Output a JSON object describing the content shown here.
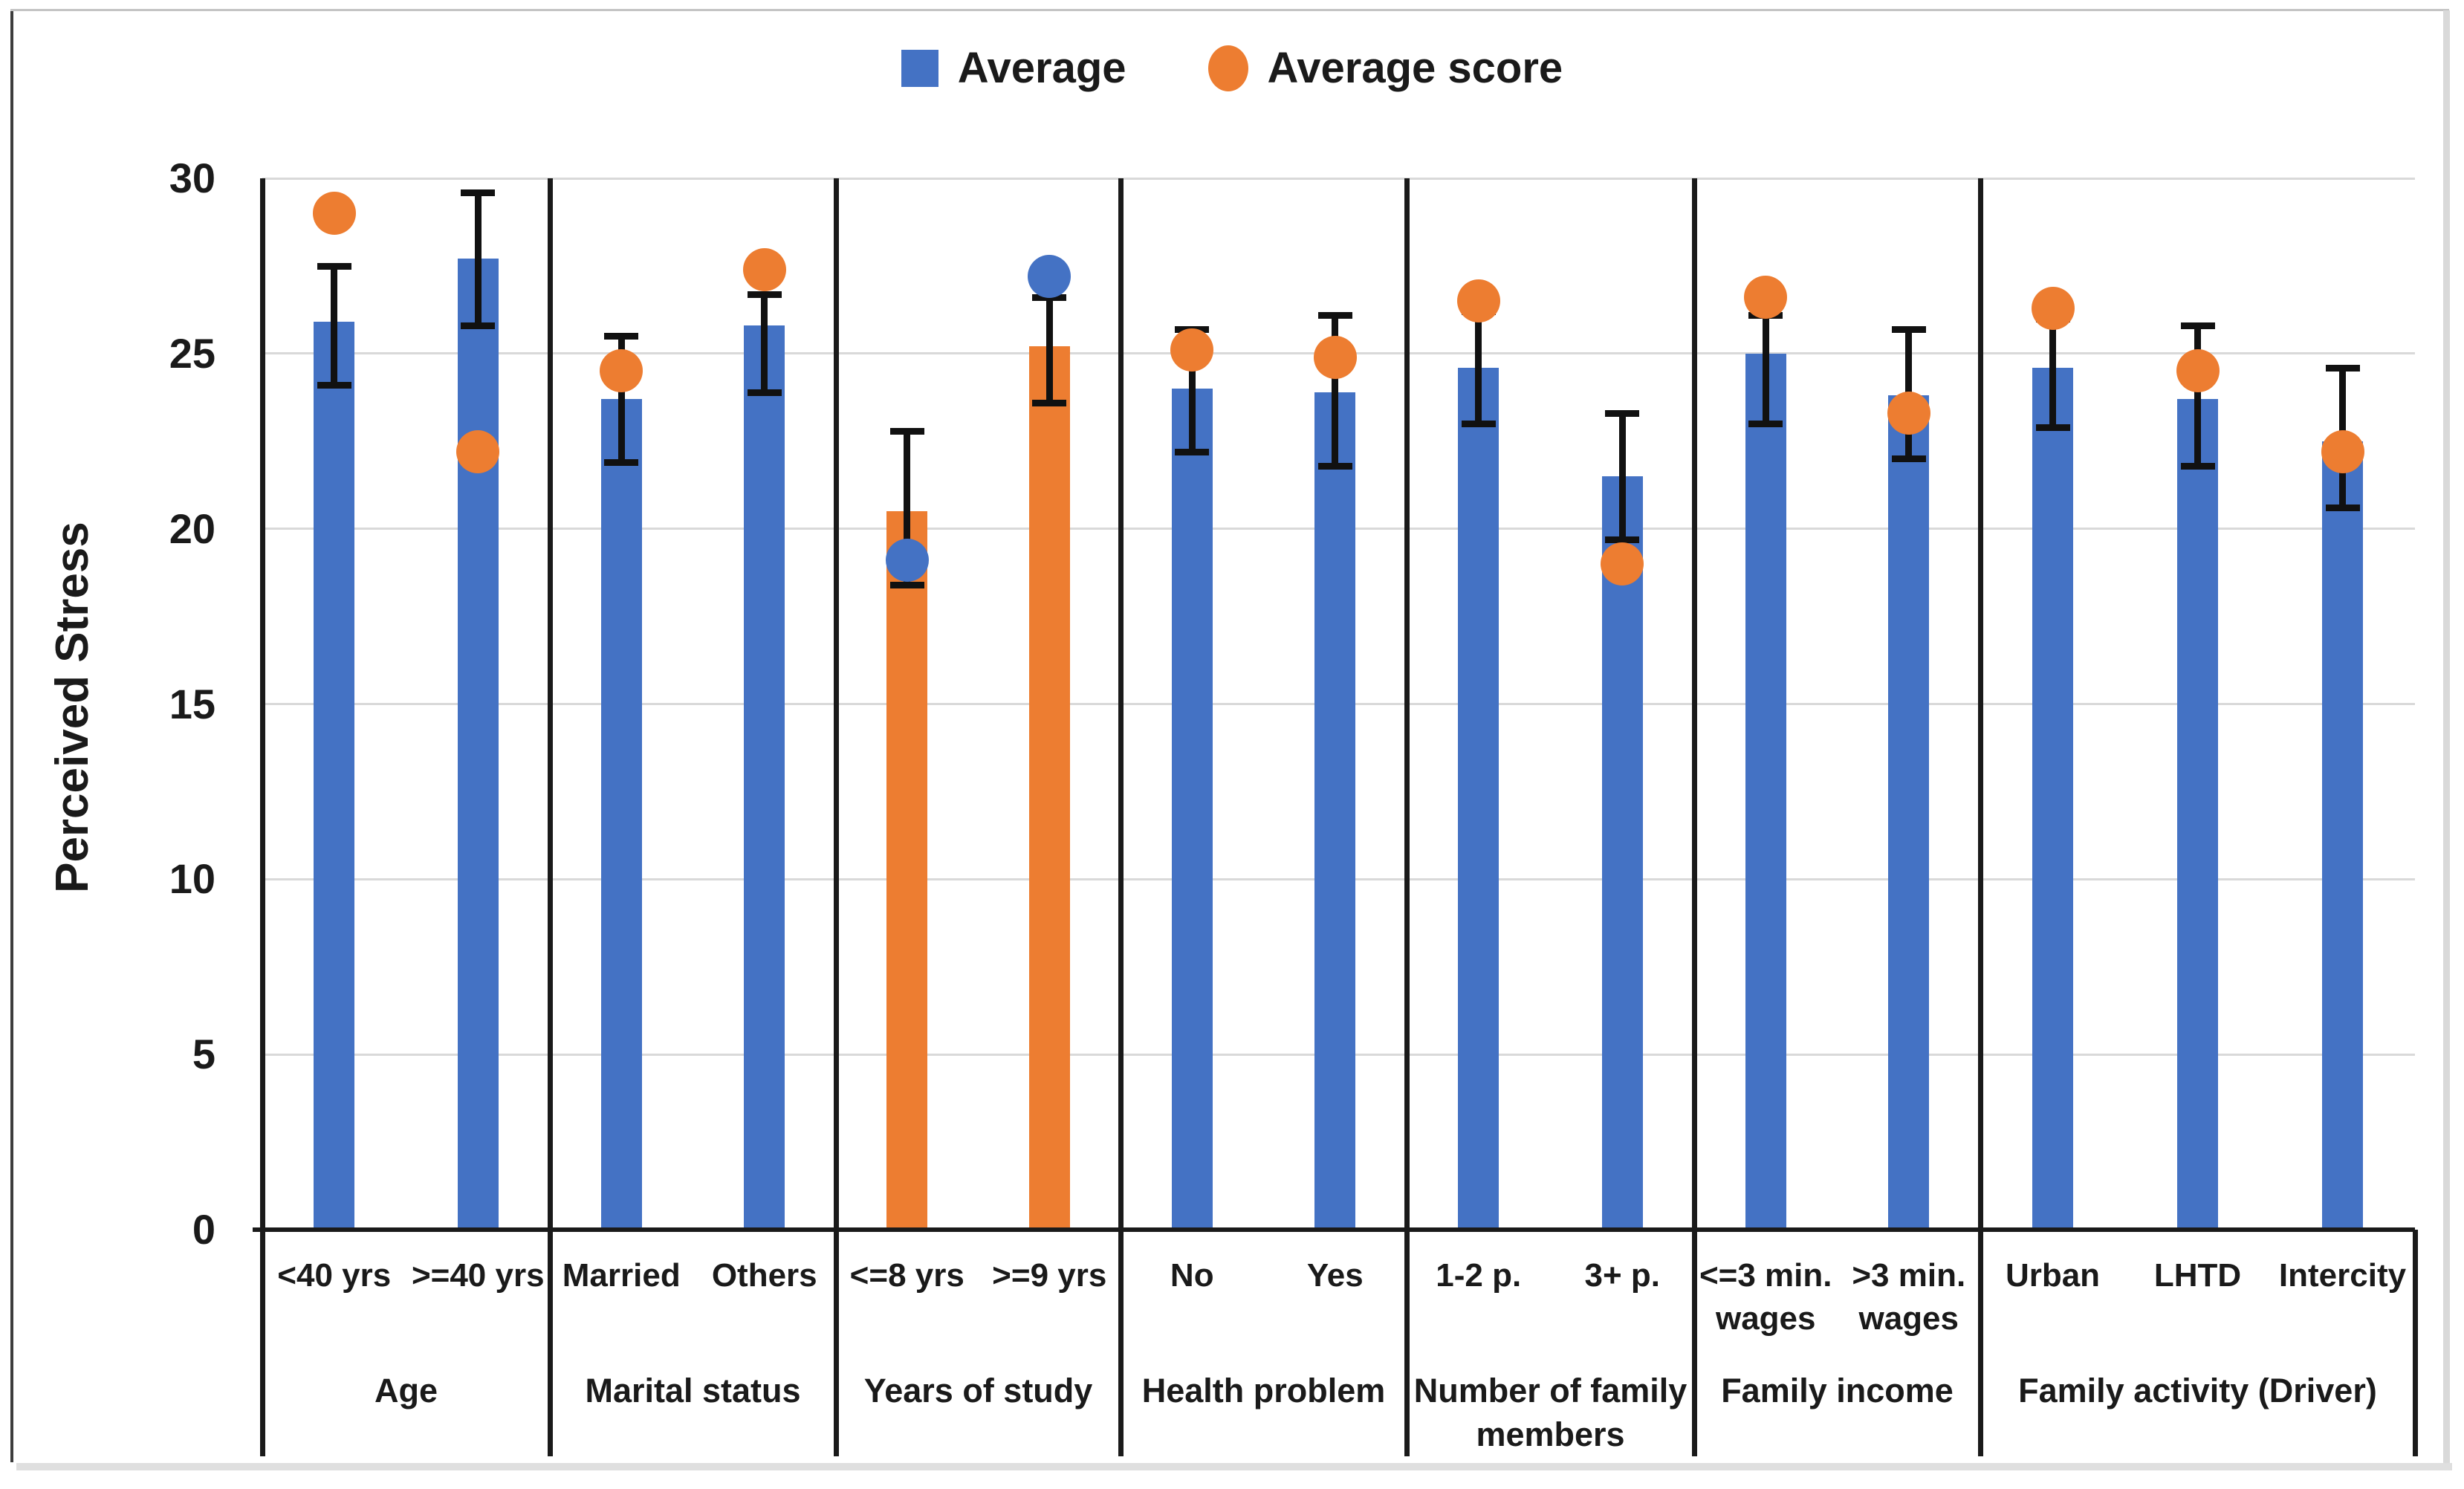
{
  "chart_data": {
    "type": "bar",
    "title": "",
    "ylabel": "Perceived Stress",
    "ylim": [
      0,
      30
    ],
    "ytick_step": 5,
    "yticks": [
      0,
      5,
      10,
      15,
      20,
      25,
      30
    ],
    "grid": true,
    "legend_position": "top-center",
    "legend": [
      {
        "label": "Average",
        "marker": "square",
        "color": "#4472C4"
      },
      {
        "label": "Average score",
        "marker": "circle",
        "color": "#ED7D31"
      }
    ],
    "groups": [
      {
        "label": "Age",
        "categories": [
          {
            "label": "<40 yrs",
            "average": 25.9,
            "error_low": 24.1,
            "error_high": 27.5,
            "average_score": 29.0,
            "bar_color": "#4472C4",
            "dot_color": "#ED7D31"
          },
          {
            "label": ">=40 yrs",
            "average": 27.7,
            "error_low": 25.8,
            "error_high": 29.6,
            "average_score": 22.2,
            "bar_color": "#4472C4",
            "dot_color": "#ED7D31"
          }
        ]
      },
      {
        "label": "Marital status",
        "categories": [
          {
            "label": "Married",
            "average": 23.7,
            "error_low": 21.9,
            "error_high": 25.5,
            "average_score": 24.5,
            "bar_color": "#4472C4",
            "dot_color": "#ED7D31"
          },
          {
            "label": "Others",
            "average": 25.8,
            "error_low": 23.9,
            "error_high": 26.7,
            "average_score": 27.4,
            "bar_color": "#4472C4",
            "dot_color": "#ED7D31"
          }
        ]
      },
      {
        "label": "Years of study",
        "categories": [
          {
            "label": "<=8 yrs",
            "average": 20.5,
            "error_low": 18.4,
            "error_high": 22.8,
            "average_score": 19.1,
            "bar_color": "#ED7D31",
            "dot_color": "#4472C4"
          },
          {
            "label": ">=9 yrs",
            "average": 25.2,
            "error_low": 23.6,
            "error_high": 26.6,
            "average_score": 27.2,
            "bar_color": "#ED7D31",
            "dot_color": "#4472C4"
          }
        ]
      },
      {
        "label": "Health problem",
        "categories": [
          {
            "label": "No",
            "average": 24.0,
            "error_low": 22.2,
            "error_high": 25.7,
            "average_score": 25.1,
            "bar_color": "#4472C4",
            "dot_color": "#ED7D31"
          },
          {
            "label": "Yes",
            "average": 23.9,
            "error_low": 21.8,
            "error_high": 26.1,
            "average_score": 24.9,
            "bar_color": "#4472C4",
            "dot_color": "#ED7D31"
          }
        ]
      },
      {
        "label": "Number of family\nmembers",
        "categories": [
          {
            "label": "1-2 p.",
            "average": 24.6,
            "error_low": 23.0,
            "error_high": 26.2,
            "average_score": 26.5,
            "bar_color": "#4472C4",
            "dot_color": "#ED7D31"
          },
          {
            "label": "3+ p.",
            "average": 21.5,
            "error_low": 19.7,
            "error_high": 23.3,
            "average_score": 19.0,
            "bar_color": "#4472C4",
            "dot_color": "#ED7D31"
          }
        ]
      },
      {
        "label": "Family income",
        "categories": [
          {
            "label": "<=3 min.\nwages",
            "average": 25.0,
            "error_low": 23.0,
            "error_high": 26.1,
            "average_score": 26.6,
            "bar_color": "#4472C4",
            "dot_color": "#ED7D31"
          },
          {
            "label": ">3 min.\nwages",
            "average": 23.8,
            "error_low": 22.0,
            "error_high": 25.7,
            "average_score": 23.3,
            "bar_color": "#4472C4",
            "dot_color": "#ED7D31"
          }
        ]
      },
      {
        "label": "Family activity (Driver)",
        "categories": [
          {
            "label": "Urban",
            "average": 24.6,
            "error_low": 22.9,
            "error_high": 26.0,
            "average_score": 26.3,
            "bar_color": "#4472C4",
            "dot_color": "#ED7D31"
          },
          {
            "label": "LHTD",
            "average": 23.7,
            "error_low": 21.8,
            "error_high": 25.8,
            "average_score": 24.5,
            "bar_color": "#4472C4",
            "dot_color": "#ED7D31"
          },
          {
            "label": "Intercity",
            "average": 22.5,
            "error_low": 20.6,
            "error_high": 24.6,
            "average_score": 22.2,
            "bar_color": "#4472C4",
            "dot_color": "#ED7D31"
          }
        ]
      }
    ]
  },
  "colors": {
    "bar_blue": "#4472C4",
    "accent_orange": "#ED7D31",
    "gridline": "#D9D9D9",
    "axis_black": "#1A1A1A",
    "error_bar": "#111111",
    "shadow_gray": "#DFDFDF"
  }
}
